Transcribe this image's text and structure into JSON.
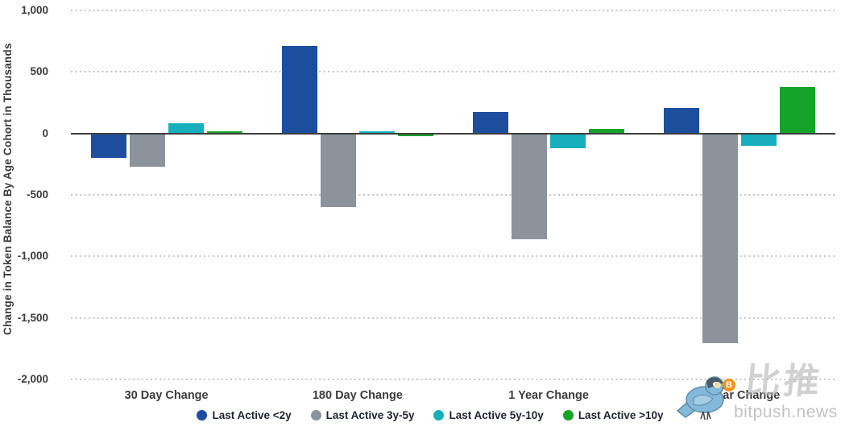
{
  "chart_data": {
    "type": "bar",
    "title": "",
    "ylabel": "Change in Token Balance By Age Cohort in Thousands",
    "xlabel": "",
    "categories": [
      "30 Day Change",
      "180 Day Change",
      "1 Year Change",
      "2 Year Change"
    ],
    "series": [
      {
        "name": "Last Active <2y",
        "color": "#1d4e9e",
        "values": [
          -200,
          710,
          175,
          205
        ]
      },
      {
        "name": "Last Active 3y-5y",
        "color": "#8c939b",
        "values": [
          -270,
          -600,
          -860,
          -1705
        ]
      },
      {
        "name": "Last Active 5y-10y",
        "color": "#17afbe",
        "values": [
          80,
          20,
          -120,
          -100
        ]
      },
      {
        "name": "Last Active >10y",
        "color": "#16a32a",
        "values": [
          5,
          -20,
          40,
          380
        ]
      }
    ],
    "ylim": [
      -2000,
      1000
    ],
    "yticks": [
      {
        "value": 1000,
        "label": "1,000"
      },
      {
        "value": 500,
        "label": "500"
      },
      {
        "value": 0,
        "label": "0"
      },
      {
        "value": -500,
        "label": "-500"
      },
      {
        "value": -1000,
        "label": "-1,000"
      },
      {
        "value": -1500,
        "label": "-1,500"
      },
      {
        "value": -2000,
        "label": "-2,000"
      }
    ],
    "grid": "horizontal-dotted",
    "legend_position": "bottom-center"
  },
  "watermark": {
    "brand_cjk": "比推",
    "brand_domain": "bitpush.news",
    "bird_color": "#85b9d9",
    "coin_color": "#f0941d",
    "coin_symbol": "B"
  }
}
